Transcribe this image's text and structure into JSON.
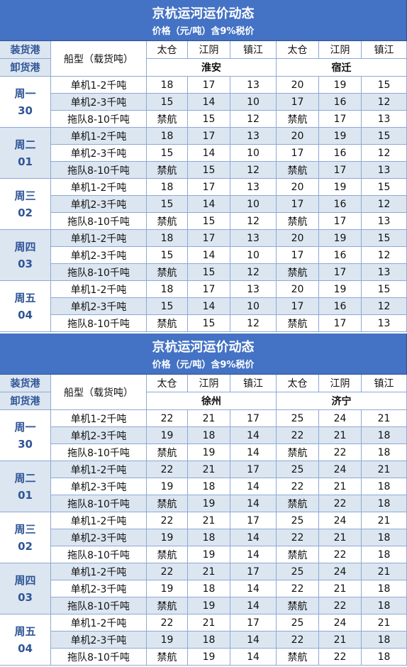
{
  "tables": [
    {
      "title": "京杭运河运价动态",
      "subtitle": "价格（元/吨）含9%税价",
      "load_label": "装货港",
      "unload_label": "卸货港",
      "ship_header": "船型（载货吨）",
      "ports": [
        "太仓",
        "江阴",
        "镇江",
        "太仓",
        "江阴",
        "镇江"
      ],
      "destinations": [
        "淮安",
        "宿迁"
      ],
      "days": [
        {
          "day": "周一",
          "date": "30",
          "rows": [
            {
              "ship": "单机1-2千吨",
              "prices": [
                "18",
                "17",
                "13",
                "20",
                "19",
                "15"
              ]
            },
            {
              "ship": "单机2-3千吨",
              "prices": [
                "15",
                "14",
                "10",
                "17",
                "16",
                "12"
              ]
            },
            {
              "ship": "拖队8-10千吨",
              "prices": [
                "禁航",
                "15",
                "12",
                "禁航",
                "17",
                "13"
              ]
            }
          ]
        },
        {
          "day": "周二",
          "date": "01",
          "rows": [
            {
              "ship": "单机1-2千吨",
              "prices": [
                "18",
                "17",
                "13",
                "20",
                "19",
                "15"
              ]
            },
            {
              "ship": "单机2-3千吨",
              "prices": [
                "15",
                "14",
                "10",
                "17",
                "16",
                "12"
              ]
            },
            {
              "ship": "拖队8-10千吨",
              "prices": [
                "禁航",
                "15",
                "12",
                "禁航",
                "17",
                "13"
              ]
            }
          ]
        },
        {
          "day": "周三",
          "date": "02",
          "rows": [
            {
              "ship": "单机1-2千吨",
              "prices": [
                "18",
                "17",
                "13",
                "20",
                "19",
                "15"
              ]
            },
            {
              "ship": "单机2-3千吨",
              "prices": [
                "15",
                "14",
                "10",
                "17",
                "16",
                "12"
              ]
            },
            {
              "ship": "拖队8-10千吨",
              "prices": [
                "禁航",
                "15",
                "12",
                "禁航",
                "17",
                "13"
              ]
            }
          ]
        },
        {
          "day": "周四",
          "date": "03",
          "rows": [
            {
              "ship": "单机1-2千吨",
              "prices": [
                "18",
                "17",
                "13",
                "20",
                "19",
                "15"
              ]
            },
            {
              "ship": "单机2-3千吨",
              "prices": [
                "15",
                "14",
                "10",
                "17",
                "16",
                "12"
              ]
            },
            {
              "ship": "拖队8-10千吨",
              "prices": [
                "禁航",
                "15",
                "12",
                "禁航",
                "17",
                "13"
              ]
            }
          ]
        },
        {
          "day": "周五",
          "date": "04",
          "rows": [
            {
              "ship": "单机1-2千吨",
              "prices": [
                "18",
                "17",
                "13",
                "20",
                "19",
                "15"
              ]
            },
            {
              "ship": "单机2-3千吨",
              "prices": [
                "15",
                "14",
                "10",
                "17",
                "16",
                "12"
              ]
            },
            {
              "ship": "拖队8-10千吨",
              "prices": [
                "禁航",
                "15",
                "12",
                "禁航",
                "17",
                "13"
              ]
            }
          ]
        }
      ]
    },
    {
      "title": "京杭运河运价动态",
      "subtitle": "价格（元/吨）含9%税价",
      "load_label": "装货港",
      "unload_label": "卸货港",
      "ship_header": "船型（载货吨）",
      "ports": [
        "太仓",
        "江阴",
        "镇江",
        "太仓",
        "江阴",
        "镇江"
      ],
      "destinations": [
        "徐州",
        "济宁"
      ],
      "days": [
        {
          "day": "周一",
          "date": "30",
          "rows": [
            {
              "ship": "单机1-2千吨",
              "prices": [
                "22",
                "21",
                "17",
                "25",
                "24",
                "21"
              ]
            },
            {
              "ship": "单机2-3千吨",
              "prices": [
                "19",
                "18",
                "14",
                "22",
                "21",
                "18"
              ]
            },
            {
              "ship": "拖队8-10千吨",
              "prices": [
                "禁航",
                "19",
                "14",
                "禁航",
                "22",
                "18"
              ]
            }
          ]
        },
        {
          "day": "周二",
          "date": "01",
          "rows": [
            {
              "ship": "单机1-2千吨",
              "prices": [
                "22",
                "21",
                "17",
                "25",
                "24",
                "21"
              ]
            },
            {
              "ship": "单机2-3千吨",
              "prices": [
                "19",
                "18",
                "14",
                "22",
                "21",
                "18"
              ]
            },
            {
              "ship": "拖队8-10千吨",
              "prices": [
                "禁航",
                "19",
                "14",
                "禁航",
                "22",
                "18"
              ]
            }
          ]
        },
        {
          "day": "周三",
          "date": "02",
          "rows": [
            {
              "ship": "单机1-2千吨",
              "prices": [
                "22",
                "21",
                "17",
                "25",
                "24",
                "21"
              ]
            },
            {
              "ship": "单机2-3千吨",
              "prices": [
                "19",
                "18",
                "14",
                "22",
                "21",
                "18"
              ]
            },
            {
              "ship": "拖队8-10千吨",
              "prices": [
                "禁航",
                "19",
                "14",
                "禁航",
                "22",
                "18"
              ]
            }
          ]
        },
        {
          "day": "周四",
          "date": "03",
          "rows": [
            {
              "ship": "单机1-2千吨",
              "prices": [
                "22",
                "21",
                "17",
                "25",
                "24",
                "21"
              ]
            },
            {
              "ship": "单机2-3千吨",
              "prices": [
                "19",
                "18",
                "14",
                "22",
                "21",
                "18"
              ]
            },
            {
              "ship": "拖队8-10千吨",
              "prices": [
                "禁航",
                "19",
                "14",
                "禁航",
                "22",
                "18"
              ]
            }
          ]
        },
        {
          "day": "周五",
          "date": "04",
          "rows": [
            {
              "ship": "单机1-2千吨",
              "prices": [
                "22",
                "21",
                "17",
                "25",
                "24",
                "21"
              ]
            },
            {
              "ship": "单机2-3千吨",
              "prices": [
                "19",
                "18",
                "14",
                "22",
                "21",
                "18"
              ]
            },
            {
              "ship": "拖队8-10千吨",
              "prices": [
                "禁航",
                "19",
                "14",
                "禁航",
                "22",
                "18"
              ]
            }
          ]
        }
      ]
    }
  ]
}
